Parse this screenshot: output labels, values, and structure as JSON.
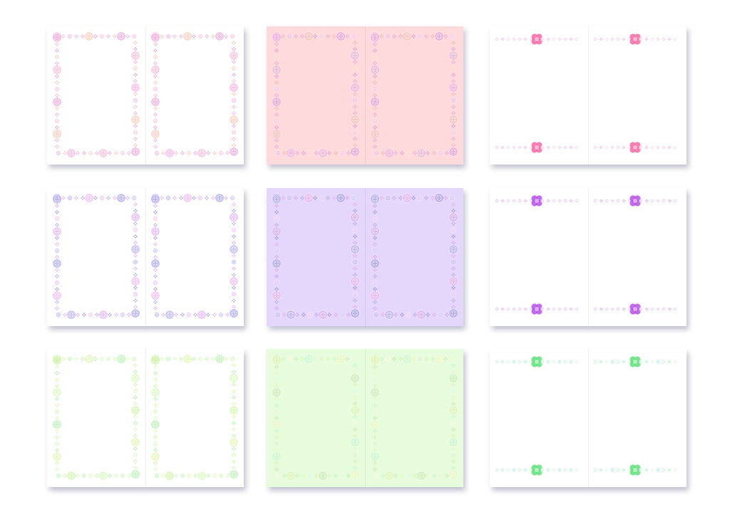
{
  "cards": [
    {
      "style": "frame",
      "bg": "#ffffff",
      "colors": [
        "#f49ad8",
        "#f7b9a4",
        "#e58ad1",
        "#f2a6c8"
      ]
    },
    {
      "style": "frame",
      "bg": "#ffdadc",
      "colors": [
        "#f29ad9",
        "#f6b2a6",
        "#d98ad6",
        "#e6a0d2"
      ]
    },
    {
      "style": "border",
      "bg": "#ffffff",
      "colors": [
        "#f26aa6",
        "#e889e6",
        "#f4a1b9",
        "#f1a4e0"
      ]
    },
    {
      "style": "frame",
      "bg": "#ffffff",
      "colors": [
        "#a198f2",
        "#eaa2ea",
        "#8c86e8",
        "#d89aee"
      ]
    },
    {
      "style": "frame",
      "bg": "#e4d7fb",
      "colors": [
        "#a8a0f2",
        "#e9a2ea",
        "#8d88e6",
        "#d79aef"
      ]
    },
    {
      "style": "border",
      "bg": "#ffffff",
      "colors": [
        "#b64de8",
        "#d77be9",
        "#9b7af1",
        "#e39be9"
      ]
    },
    {
      "style": "frame",
      "bg": "#ffffff",
      "colors": [
        "#bef28b",
        "#d8f29a",
        "#9cee95",
        "#ccf6a6"
      ]
    },
    {
      "style": "frame",
      "bg": "#e6fcdc",
      "colors": [
        "#d7f29b",
        "#b9f5c5",
        "#ecf4b0",
        "#bde6a4"
      ]
    },
    {
      "style": "border",
      "bg": "#ffffff",
      "colors": [
        "#5fe07b",
        "#7fe6c5",
        "#a4eb8c",
        "#63e2cf"
      ]
    }
  ]
}
